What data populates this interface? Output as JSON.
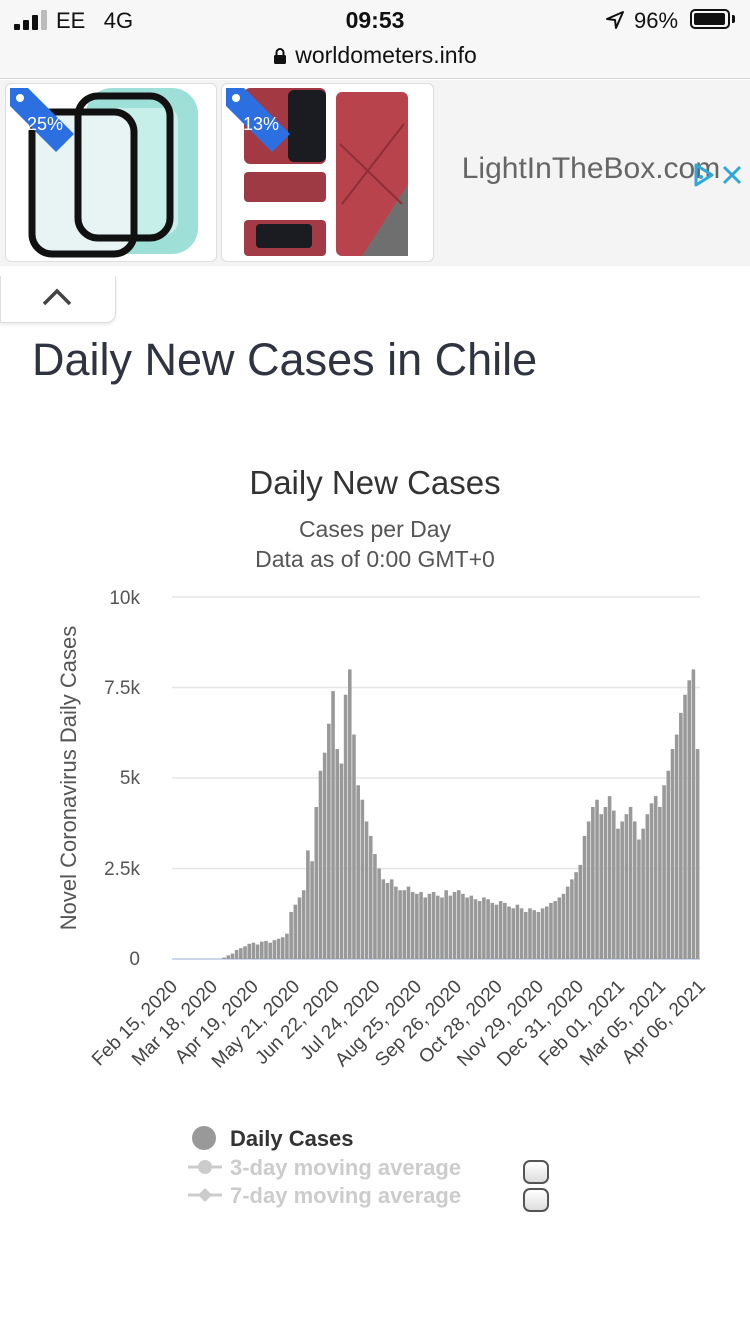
{
  "status": {
    "carrier": "EE",
    "network": "4G",
    "time": "09:53",
    "battery": "96%",
    "signal_icon": "signal-bars-icon",
    "location_icon": "location-arrow-icon"
  },
  "browser": {
    "url": "worldometers.info",
    "secure_icon": "lock-icon"
  },
  "ad": {
    "items": [
      {
        "discount": "-25%",
        "product": "watch-case-image"
      },
      {
        "discount": "-13%",
        "product": "phone-case-image"
      }
    ],
    "brand": "LightInTheBox.com",
    "adchoices_icon": "adchoices-icon",
    "close_icon": "close-icon",
    "collapse_icon": "chevron-up-icon"
  },
  "page": {
    "title": "Daily New Cases in Chile"
  },
  "chart_data": {
    "type": "bar",
    "title": "Daily New Cases",
    "subtitle": "Cases per Day",
    "subtitle2": "Data as of 0:00 GMT+0",
    "ylabel": "Novel Coronavirus Daily Cases",
    "ylim": [
      0,
      10000
    ],
    "yticks": [
      "0",
      "2.5k",
      "5k",
      "7.5k",
      "10k"
    ],
    "ytick_values": [
      0,
      2500,
      5000,
      7500,
      10000
    ],
    "x_tick_labels": [
      "Feb 15, 2020",
      "Mar 18, 2020",
      "Apr 19, 2020",
      "May 21, 2020",
      "Jun 22, 2020",
      "Jul 24, 2020",
      "Aug 25, 2020",
      "Sep 26, 2020",
      "Oct 28, 2020",
      "Nov 29, 2020",
      "Dec 31, 2020",
      "Feb 01, 2021",
      "Mar 05, 2021",
      "Apr 06, 2021"
    ],
    "x_range": [
      "2020-02-15",
      "2021-04-13"
    ],
    "series": [
      {
        "name": "Daily Cases",
        "color": "#999999",
        "interval_days": 3,
        "values": [
          0,
          0,
          0,
          0,
          0,
          0,
          0,
          0,
          0,
          0,
          0,
          0,
          40,
          100,
          150,
          250,
          300,
          350,
          420,
          450,
          400,
          480,
          500,
          450,
          520,
          560,
          600,
          700,
          1300,
          1500,
          1700,
          1900,
          3000,
          2700,
          4200,
          5200,
          5700,
          6500,
          7400,
          5800,
          5400,
          7300,
          8000,
          6200,
          4800,
          4400,
          3800,
          3400,
          2900,
          2500,
          2200,
          2100,
          2200,
          2000,
          1900,
          1900,
          2000,
          1850,
          1800,
          1850,
          1700,
          1800,
          1850,
          1750,
          1700,
          1900,
          1750,
          1850,
          1900,
          1800,
          1700,
          1750,
          1650,
          1600,
          1700,
          1650,
          1550,
          1500,
          1600,
          1550,
          1450,
          1400,
          1500,
          1400,
          1300,
          1400,
          1350,
          1300,
          1400,
          1450,
          1550,
          1600,
          1700,
          1800,
          2000,
          2200,
          2400,
          2600,
          3400,
          3800,
          4200,
          4400,
          4000,
          4200,
          4500,
          4100,
          3600,
          3800,
          4000,
          4200,
          3800,
          3300,
          3600,
          4000,
          4300,
          4500,
          4200,
          4800,
          5200,
          5800,
          6200,
          6800,
          7300,
          7700,
          8000,
          5800
        ],
        "visible": true
      },
      {
        "name": "3-day moving average",
        "visible": false
      },
      {
        "name": "7-day moving average",
        "visible": false
      }
    ],
    "legend_position": "bottom"
  }
}
